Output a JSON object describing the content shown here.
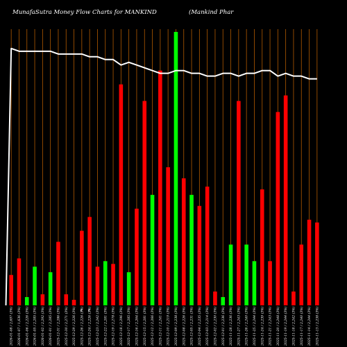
{
  "chart_data": {
    "type": "bar",
    "title": "MunafaSutra  Money Flow  Charts for MANKIND",
    "subtitle": "(Mankind Phar",
    "colors": {
      "background": "#000000",
      "grid": "#b35a00",
      "up": "#00ff00",
      "down": "#ff0000",
      "line": "#ffffff"
    },
    "grid": true,
    "ylim": [
      0,
      100
    ],
    "categories": [
      "2026-01-08 / 2,697 (3%)",
      "2026-01-07 / 1,636 (3%)",
      "2026-01-06 / 2,226 (3%)",
      "2026-01-05 / 2,285 (3%)",
      "2026-01-02 / 2,292 (3%)",
      "2026-01-01 / 2,285 (3%)",
      "2025-12-31 / 2,286 (3%)",
      "2025-12-30 / 2,271 (3%)",
      "2025-12-29 / 2,226 (3%)",
      "2025-12-26 / 2,226 (3%)",
      "2025-12-24 / 2,226 (3%)",
      "2025-12-23 / 2,242 (3%)",
      "2025-12-22 / 2,281 (3%)",
      "2025-12-19 / 2,278 (3%)",
      "2025-12-18 / 2,296 (3%)",
      "2025-12-17 / 2,285 (3%)",
      "2025-12-16 / 2,264 (3%)",
      "2025-12-15 / 2,281 (3%)",
      "2025-12-12 / 2,266 (3%)",
      "2025-12-11 / 2,241 (3%)",
      "2025-12-10 / 2,219 (3%)",
      "2025-12-09 / 2,238 (3%)",
      "2025-12-08 / 2,226 (3%)",
      "2025-12-05 / 2,231 (3%)",
      "2025-12-04 / 2,235 (3%)",
      "2025-12-03 / 2,214 (3%)",
      "2025-12-02 / 2,230 (3%)",
      "2025-12-01 / 2,236 (3%)",
      "2025-11-28 / 2,236 (3%)",
      "2025-11-27 / 2,243 (3%)",
      "2025-11-26 / 2,240 (3%)",
      "2025-11-25 / 2,244 (3%)",
      "2025-11-24 / 2,239 (3%)",
      "2025-11-21 / 2,243 (3%)",
      "2025-11-20 / 2,248 (3%)",
      "2025-11-19 / 2,244 (3%)",
      "2025-11-18 / 2,242 (3%)",
      "2025-11-17 / 2,240 (3%)",
      "2025-11-14 / 2,244 (3%)",
      "2025-11-13 / 2,238 (3%)"
    ],
    "series": [
      {
        "kind": "bar",
        "values": [
          11,
          17,
          3,
          14,
          4,
          12,
          23,
          4,
          2,
          27,
          32,
          14,
          16,
          15,
          80,
          12,
          35,
          74,
          40,
          85,
          50,
          99,
          46,
          40,
          36,
          43,
          5,
          3,
          22,
          74,
          22,
          16,
          42,
          16,
          70,
          76,
          5,
          22,
          31,
          30
        ],
        "colors": [
          "down",
          "down",
          "up",
          "up",
          "down",
          "up",
          "down",
          "down",
          "down",
          "down",
          "down",
          "down",
          "up",
          "down",
          "down",
          "up",
          "down",
          "down",
          "up",
          "down",
          "down",
          "up",
          "down",
          "up",
          "down",
          "down",
          "down",
          "up",
          "up",
          "down",
          "up",
          "up",
          "down",
          "down",
          "down",
          "down",
          "down",
          "down",
          "down",
          "down"
        ]
      },
      {
        "kind": "line",
        "values": [
          93,
          92,
          92,
          92,
          92,
          92,
          91,
          91,
          91,
          91,
          90,
          90,
          89,
          89,
          87,
          88,
          87,
          86,
          85,
          84,
          84,
          85,
          85,
          84,
          84,
          83,
          83,
          84,
          84,
          83,
          84,
          84,
          85,
          85,
          83,
          84,
          83,
          83,
          82,
          82
        ]
      }
    ],
    "marks": [
      {
        "index": 9,
        "label": "€"
      },
      {
        "index": 10,
        "label": "€"
      }
    ]
  }
}
